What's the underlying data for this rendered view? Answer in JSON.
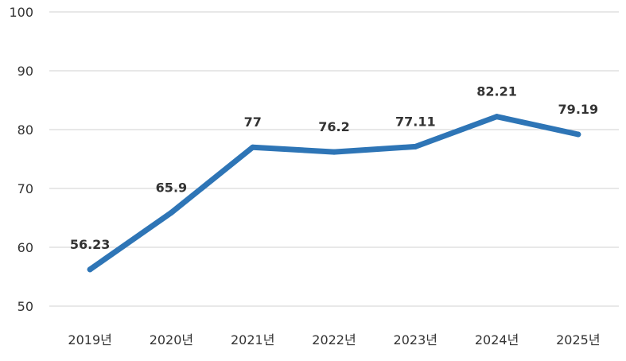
{
  "chart_data": {
    "type": "line",
    "title": "",
    "xlabel": "",
    "ylabel": "",
    "categories": [
      "2019년",
      "2020년",
      "2021년",
      "2022년",
      "2023년",
      "2024년",
      "2025년"
    ],
    "series": [
      {
        "values": [
          56.23,
          65.9,
          77,
          76.2,
          77.11,
          82.21,
          79.19
        ],
        "value_labels": [
          "56.23",
          "65.9",
          "77",
          "76.2",
          "77.11",
          "82.21",
          "79.19"
        ],
        "color": "#2e75b6"
      }
    ],
    "yticks": [
      "50",
      "60",
      "70",
      "80",
      "90",
      "100"
    ],
    "ylim": [
      50,
      100
    ],
    "grid": true,
    "legend": "none"
  }
}
